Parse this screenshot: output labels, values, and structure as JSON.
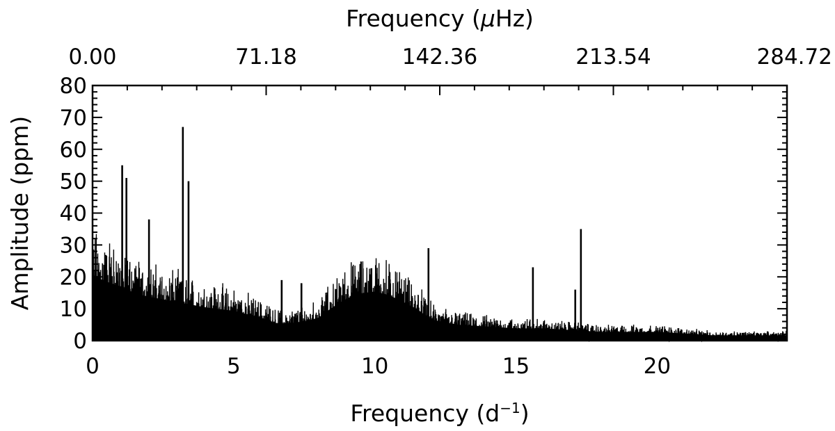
{
  "chart_data": {
    "type": "line",
    "title": "",
    "xlabel": "Frequency (d",
    "xlabel_superscript": "−1",
    "xlabel_suffix": ")",
    "ylabel": "Amplitude (ppm)",
    "top_xlabel_prefix": "Frequency (",
    "top_xlabel_mu": "μ",
    "top_xlabel_suffix": "Hz)",
    "xlim": [
      0,
      24.6
    ],
    "ylim": [
      0,
      80
    ],
    "xticks": [
      0,
      5,
      10,
      15,
      20
    ],
    "xtick_labels": [
      "0",
      "5",
      "10",
      "15",
      "20"
    ],
    "yticks": [
      0,
      10,
      20,
      30,
      40,
      50,
      60,
      70,
      80
    ],
    "ytick_labels": [
      "0",
      "10",
      "20",
      "30",
      "40",
      "50",
      "60",
      "70",
      "80"
    ],
    "top_xticks_d": [
      0,
      6.15,
      12.3,
      18.45,
      24.6
    ],
    "top_xtick_labels": [
      "0.00",
      "71.18",
      "142.36",
      "213.54",
      "284.72"
    ],
    "grid": false,
    "legend": "none",
    "series": [
      {
        "color": "#000000",
        "noise_envelope": {
          "x": [
            0,
            0.3,
            0.6,
            1.0,
            1.5,
            2.0,
            3.0,
            4.0,
            5.0,
            6.0,
            6.5,
            7.0,
            7.5,
            8.0,
            8.5,
            9.0,
            9.5,
            10.0,
            10.5,
            11.0,
            11.5,
            12.0,
            13.0,
            14.0,
            15.0,
            16.0,
            17.0,
            18.0,
            19.0,
            20.0,
            21.0,
            22.0,
            23.0,
            24.6
          ],
          "y": [
            36,
            35,
            33,
            31,
            27,
            25,
            22,
            19,
            17,
            13,
            10,
            10,
            11,
            13,
            19,
            24,
            27,
            28,
            26,
            22,
            18,
            12,
            9,
            8,
            7,
            7,
            6,
            5,
            5,
            5,
            4,
            3,
            3,
            3
          ]
        },
        "peaks": [
          {
            "x": 1.05,
            "y": 55
          },
          {
            "x": 1.2,
            "y": 51
          },
          {
            "x": 2.0,
            "y": 38
          },
          {
            "x": 3.2,
            "y": 67
          },
          {
            "x": 3.4,
            "y": 50
          },
          {
            "x": 6.7,
            "y": 19
          },
          {
            "x": 7.4,
            "y": 18
          },
          {
            "x": 11.9,
            "y": 29
          },
          {
            "x": 15.6,
            "y": 23
          },
          {
            "x": 17.1,
            "y": 16
          },
          {
            "x": 17.3,
            "y": 35
          }
        ]
      }
    ]
  }
}
